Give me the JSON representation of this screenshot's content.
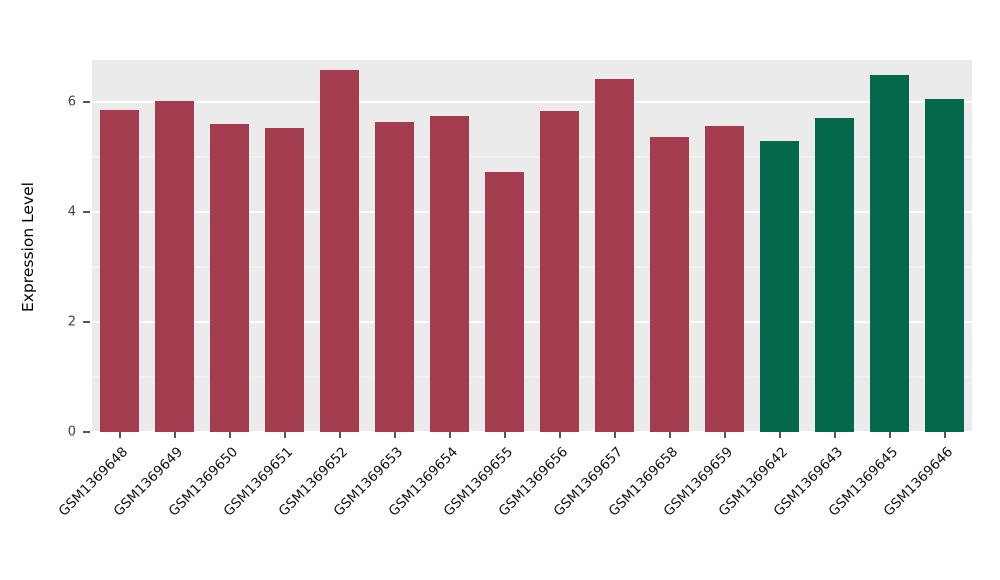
{
  "chart_data": {
    "type": "bar",
    "title": "",
    "xlabel": "",
    "ylabel": "Expression Level",
    "ylim": [
      0,
      6.76
    ],
    "yticks": [
      0,
      2,
      4,
      6
    ],
    "yticks_minor": [
      1,
      3,
      5
    ],
    "grid": "white major and minor horizontal gridlines on gray panel",
    "legend": "none",
    "plot_background": "#EBEBEB",
    "categories": [
      "GSM1369648",
      "GSM1369649",
      "GSM1369650",
      "GSM1369651",
      "GSM1369652",
      "GSM1369653",
      "GSM1369654",
      "GSM1369655",
      "GSM1369656",
      "GSM1369657",
      "GSM1369658",
      "GSM1369659",
      "GSM1369642",
      "GSM1369643",
      "GSM1369645",
      "GSM1369646"
    ],
    "values": [
      5.85,
      6.02,
      5.6,
      5.52,
      6.57,
      5.63,
      5.75,
      4.72,
      5.84,
      6.42,
      5.36,
      5.57,
      5.28,
      5.71,
      6.48,
      6.05
    ],
    "bar_colors": [
      "#A33C4E",
      "#A33C4E",
      "#A33C4E",
      "#A33C4E",
      "#A33C4E",
      "#A33C4E",
      "#A33C4E",
      "#A33C4E",
      "#A33C4E",
      "#A33C4E",
      "#A33C4E",
      "#A33C4E",
      "#03694A",
      "#03694A",
      "#03694A",
      "#03694A"
    ],
    "palette": {
      "maroon_group": "#A33C4E",
      "green_group": "#03694A"
    }
  }
}
